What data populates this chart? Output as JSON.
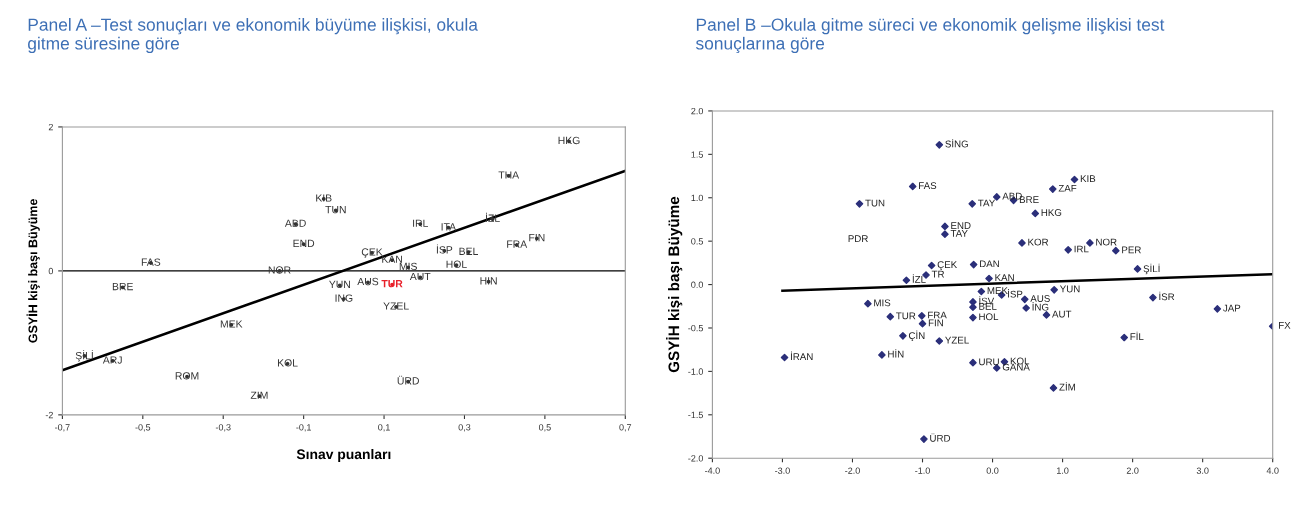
{
  "chart_data": [
    {
      "type": "scatter",
      "title": "Panel A –Test sonuçları ve ekonomik büyüme ilişkisi, okula\ngitme süresine göre",
      "xlabel": "Sınav puanları",
      "ylabel": "GSYİH kişi başı Büyüme",
      "xlim": [
        -0.7,
        0.7
      ],
      "ylim": [
        -2,
        2
      ],
      "xticks": [
        {
          "value": -0.7,
          "label": "-0,7"
        },
        {
          "value": -0.5,
          "label": "-0,5"
        },
        {
          "value": -0.3,
          "label": "-0,3"
        },
        {
          "value": -0.1,
          "label": "-0,1"
        },
        {
          "value": 0.1,
          "label": "0,1"
        },
        {
          "value": 0.3,
          "label": "0,3"
        },
        {
          "value": 0.5,
          "label": "0,5"
        },
        {
          "value": 0.7,
          "label": "0,7"
        }
      ],
      "yticks": [
        -2,
        0,
        2
      ],
      "ref_lines": [
        {
          "axis": "y",
          "value": 0,
          "color": "#000000"
        }
      ],
      "series": [
        {
          "type": "scatter",
          "marker": "circle",
          "color": "#333333",
          "x": [
            -0.48,
            -0.55,
            -0.12,
            -0.1,
            -0.05,
            -0.02,
            -0.16,
            -0.28,
            -0.645,
            -0.575,
            -0.39,
            -0.14,
            -0.21,
            -0.01,
            0.0,
            0.06,
            0.07,
            0.12,
            0.16,
            0.19,
            0.13,
            0.16,
            0.19,
            0.26,
            0.25,
            0.31,
            0.28,
            0.36,
            0.37,
            0.43,
            0.48,
            0.41,
            0.56
          ],
          "values": [
            0.11,
            -0.23,
            0.65,
            0.37,
            1.0,
            0.84,
            0.0,
            -0.75,
            -1.18,
            -1.25,
            -1.47,
            -1.29,
            -1.74,
            -0.2,
            -0.39,
            -0.16,
            0.25,
            0.15,
            0.05,
            -0.09,
            -0.5,
            -1.54,
            0.65,
            0.6,
            0.28,
            0.26,
            0.08,
            -0.15,
            0.72,
            0.36,
            0.45,
            1.32,
            1.8
          ]
        },
        {
          "type": "scatter",
          "marker": "circle",
          "color": "#e8202a",
          "x": [
            0.12
          ],
          "values": [
            -0.19
          ]
        },
        {
          "type": "line",
          "color": "#000000",
          "x": [
            -0.7,
            0.7
          ],
          "values": [
            -1.38,
            1.39
          ]
        }
      ],
      "annotations": [
        {
          "text": "FAS",
          "x": -0.48,
          "y": 0.11
        },
        {
          "text": "BRE",
          "x": -0.55,
          "y": -0.23
        },
        {
          "text": "ABD",
          "x": -0.12,
          "y": 0.65
        },
        {
          "text": "END",
          "x": -0.1,
          "y": 0.37
        },
        {
          "text": "KIB",
          "x": -0.05,
          "y": 1.0
        },
        {
          "text": "TUN",
          "x": -0.02,
          "y": 0.84
        },
        {
          "text": "NOR",
          "x": -0.16,
          "y": 0.0
        },
        {
          "text": "MEK",
          "x": -0.28,
          "y": -0.75
        },
        {
          "text": "ŞİLİ",
          "x": -0.645,
          "y": -1.18
        },
        {
          "text": "ARJ",
          "x": -0.575,
          "y": -1.25
        },
        {
          "text": "ROM",
          "x": -0.39,
          "y": -1.47
        },
        {
          "text": "KOL",
          "x": -0.14,
          "y": -1.29
        },
        {
          "text": "ZIM",
          "x": -0.21,
          "y": -1.74
        },
        {
          "text": "YUN",
          "x": -0.01,
          "y": -0.2
        },
        {
          "text": "ING",
          "x": 0.0,
          "y": -0.39
        },
        {
          "text": "AUS",
          "x": 0.06,
          "y": -0.16
        },
        {
          "text": "TUR",
          "x": 0.12,
          "y": -0.19
        },
        {
          "text": "ÇEK",
          "x": 0.07,
          "y": 0.25
        },
        {
          "text": "KAN",
          "x": 0.12,
          "y": 0.15
        },
        {
          "text": "MIS",
          "x": 0.16,
          "y": 0.05
        },
        {
          "text": "AUT",
          "x": 0.19,
          "y": -0.09
        },
        {
          "text": "YZEL",
          "x": 0.13,
          "y": -0.5
        },
        {
          "text": "ÜRD",
          "x": 0.16,
          "y": -1.54
        },
        {
          "text": "IRL",
          "x": 0.19,
          "y": 0.65
        },
        {
          "text": "ITA",
          "x": 0.26,
          "y": 0.6
        },
        {
          "text": "İSP",
          "x": 0.25,
          "y": 0.28
        },
        {
          "text": "BEL",
          "x": 0.31,
          "y": 0.26
        },
        {
          "text": "HOL",
          "x": 0.28,
          "y": 0.08
        },
        {
          "text": "HIN",
          "x": 0.36,
          "y": -0.15
        },
        {
          "text": "İZL",
          "x": 0.37,
          "y": 0.72
        },
        {
          "text": "FRA",
          "x": 0.43,
          "y": 0.36
        },
        {
          "text": "FIN",
          "x": 0.48,
          "y": 0.45
        },
        {
          "text": "THA",
          "x": 0.41,
          "y": 1.32
        },
        {
          "text": "HKG",
          "x": 0.56,
          "y": 1.8
        }
      ]
    },
    {
      "type": "scatter",
      "title": "Panel B –Okula gitme süreci ve ekonomik gelişme ilişkisi test\nsonuçlarına göre",
      "ylabel": "GSYİH kişi başı Büyüme",
      "xlim": [
        -4,
        4
      ],
      "ylim": [
        -2,
        2
      ],
      "xticks": [
        {
          "value": -4,
          "label": "-4.0"
        },
        {
          "value": -3,
          "label": "-3.0"
        },
        {
          "value": -2,
          "label": "-2.0"
        },
        {
          "value": -1,
          "label": "-1.0"
        },
        {
          "value": 0,
          "label": "0.0"
        },
        {
          "value": 1,
          "label": "1.0"
        },
        {
          "value": 2,
          "label": "2.0"
        },
        {
          "value": 3,
          "label": "3.0"
        },
        {
          "value": 4,
          "label": "4.0"
        }
      ],
      "yticks": [
        {
          "value": -2,
          "label": "-2.0"
        },
        {
          "value": -1.5,
          "label": "-1.5"
        },
        {
          "value": -1,
          "label": "-1.0"
        },
        {
          "value": -0.5,
          "label": "-0.5"
        },
        {
          "value": 0,
          "label": "0.0"
        },
        {
          "value": 0.5,
          "label": "0.5"
        },
        {
          "value": 1,
          "label": "1.0"
        },
        {
          "value": 1.5,
          "label": "1.5"
        },
        {
          "value": 2,
          "label": "2.0"
        }
      ],
      "series": [
        {
          "type": "scatter",
          "marker": "diamond",
          "color": "#2b2f7a",
          "x": [
            -0.76,
            -1.14,
            -1.9,
            -0.29,
            -0.68,
            -0.68,
            -0.27,
            -0.87,
            -0.95,
            -1.23,
            -1.78,
            -1.46,
            -1.01,
            -1.0,
            -1.28,
            -0.76,
            -1.58,
            -2.97,
            -0.98,
            1.17,
            0.86,
            0.06,
            0.3,
            0.61,
            0.42,
            1.08,
            1.39,
            1.76,
            2.07,
            -0.05,
            -0.16,
            0.13,
            0.46,
            0.88,
            2.29,
            3.21,
            4.0,
            0.48,
            0.77,
            -0.28,
            -0.28,
            -0.28,
            1.88,
            -0.28,
            0.17,
            0.06,
            0.87
          ],
          "values": [
            1.61,
            1.13,
            0.93,
            0.93,
            0.67,
            0.58,
            0.23,
            0.22,
            0.11,
            0.05,
            -0.22,
            -0.37,
            -0.36,
            -0.45,
            -0.59,
            -0.65,
            -0.81,
            -0.84,
            -1.78,
            1.21,
            1.1,
            1.01,
            0.97,
            0.82,
            0.48,
            0.4,
            0.48,
            0.39,
            0.18,
            0.07,
            -0.08,
            -0.12,
            -0.17,
            -0.06,
            -0.15,
            -0.28,
            -0.48,
            -0.27,
            -0.35,
            -0.2,
            -0.26,
            -0.38,
            -0.61,
            -0.9,
            -0.89,
            -0.96,
            -1.19
          ]
        },
        {
          "type": "line",
          "color": "#000000",
          "x": [
            -3,
            4
          ],
          "values": [
            -0.07,
            0.12
          ]
        }
      ],
      "annotations": [
        {
          "text": "SİNG",
          "x": -0.76,
          "y": 1.61
        },
        {
          "text": "FAS",
          "x": -1.14,
          "y": 1.13
        },
        {
          "text": "TUN",
          "x": -1.9,
          "y": 0.93
        },
        {
          "text": "TAY",
          "x": -0.29,
          "y": 0.93
        },
        {
          "text": "END",
          "x": -0.68,
          "y": 0.67
        },
        {
          "text": "TAY",
          "x": -0.68,
          "y": 0.58
        },
        "PDR",
        {
          "text": "DAN",
          "x": -0.27,
          "y": 0.23
        },
        {
          "text": "ÇEK",
          "x": -0.87,
          "y": 0.22
        },
        {
          "text": "TR",
          "x": -0.95,
          "y": 0.11
        },
        {
          "text": "İZL",
          "x": -1.23,
          "y": 0.05
        },
        {
          "text": "MIS",
          "x": -1.78,
          "y": -0.22
        },
        {
          "text": "TUR",
          "x": -1.46,
          "y": -0.37
        },
        {
          "text": "FRA",
          "x": -1.01,
          "y": -0.36
        },
        {
          "text": "FIN",
          "x": -1.0,
          "y": -0.45
        },
        {
          "text": "ÇİN",
          "x": -1.28,
          "y": -0.59
        },
        {
          "text": "YZEL",
          "x": -0.76,
          "y": -0.65
        },
        {
          "text": "HİN",
          "x": -1.58,
          "y": -0.81
        },
        {
          "text": "İRAN",
          "x": -2.97,
          "y": -0.84
        },
        {
          "text": "ÜRD",
          "x": -0.98,
          "y": -1.78
        },
        {
          "text": "KIB",
          "x": 1.17,
          "y": 1.21
        },
        {
          "text": "ZAF",
          "x": 0.86,
          "y": 1.1
        },
        {
          "text": "ABD",
          "x": 0.06,
          "y": 1.01
        },
        {
          "text": "BRE",
          "x": 0.3,
          "y": 0.97
        },
        {
          "text": "HKG",
          "x": 0.61,
          "y": 0.82
        },
        {
          "text": "KOR",
          "x": 0.42,
          "y": 0.48
        },
        {
          "text": "IRL",
          "x": 1.08,
          "y": 0.4
        },
        {
          "text": "NOR",
          "x": 1.39,
          "y": 0.48
        },
        {
          "text": "PER",
          "x": 1.76,
          "y": 0.39
        },
        {
          "text": "ŞİLİ",
          "x": 2.07,
          "y": 0.18
        },
        {
          "text": "KAN",
          "x": -0.05,
          "y": 0.07
        },
        {
          "text": "MEK",
          "x": -0.16,
          "y": -0.08
        },
        {
          "text": "İSP",
          "x": 0.13,
          "y": -0.12
        },
        {
          "text": "AUS",
          "x": 0.46,
          "y": -0.17
        },
        {
          "text": "YUN",
          "x": 0.88,
          "y": -0.06
        },
        {
          "text": "İSR",
          "x": 2.29,
          "y": -0.15
        },
        {
          "text": "JAP",
          "x": 3.21,
          "y": -0.28
        },
        {
          "text": "FX",
          "x": 4.0,
          "y": -0.48
        },
        {
          "text": "İNG",
          "x": 0.48,
          "y": -0.27
        },
        {
          "text": "AUT",
          "x": 0.77,
          "y": -0.35
        },
        {
          "text": "İSV",
          "x": -0.28,
          "y": -0.2
        },
        {
          "text": "BEL",
          "x": -0.28,
          "y": -0.26
        },
        {
          "text": "HOL",
          "x": -0.28,
          "y": -0.38
        },
        {
          "text": "FİL",
          "x": 1.88,
          "y": -0.61
        },
        {
          "text": "URU",
          "x": -0.28,
          "y": -0.9
        },
        {
          "text": "KOL",
          "x": 0.17,
          "y": -0.89
        },
        {
          "text": "GANA",
          "x": 0.06,
          "y": -0.96
        },
        {
          "text": "ZİM",
          "x": 0.87,
          "y": -1.19
        }
      ]
    }
  ]
}
